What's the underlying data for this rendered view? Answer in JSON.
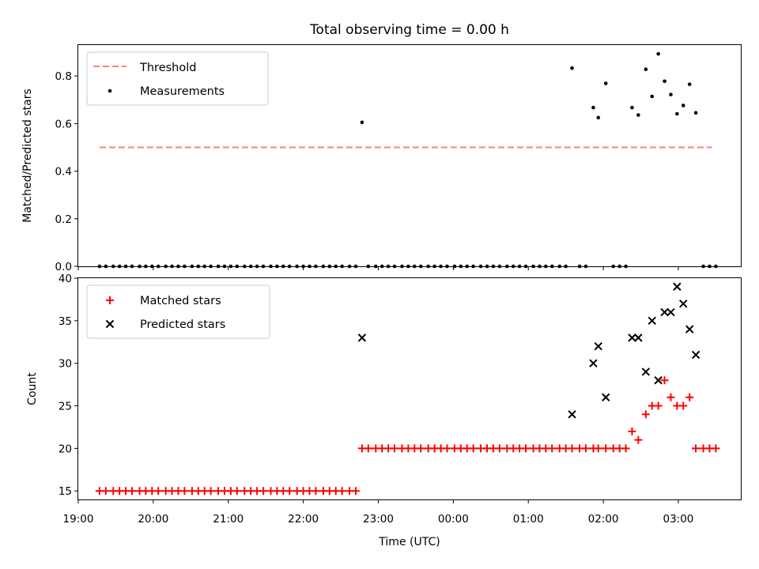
{
  "chart_data": [
    {
      "type": "scatter",
      "title": "Total observing time = 0.00 h",
      "ylabel": "Matched/Predicted stars",
      "xlabel": "",
      "xlim": [
        "19:00",
        "03:50"
      ],
      "ylim": [
        0,
        0.93
      ],
      "yticks": [
        "0.0",
        "0.2",
        "0.4",
        "0.6",
        "0.8"
      ],
      "xticks": [
        "19:00",
        "20:00",
        "21:00",
        "22:00",
        "23:00",
        "00:00",
        "01:00",
        "02:00",
        "03:00"
      ],
      "legend": {
        "position": "upper-left",
        "entries": [
          "Threshold",
          "Measurements"
        ]
      },
      "colors": {
        "threshold": "#ff7f7f",
        "measurements": "#000000"
      },
      "threshold": {
        "name": "Threshold",
        "y": 0.5,
        "x_start": "19:17",
        "x_end": "03:27"
      },
      "series": [
        {
          "name": "Measurements",
          "points": [
            [
              "19:17",
              0
            ],
            [
              "19:22",
              0
            ],
            [
              "19:28",
              0
            ],
            [
              "19:33",
              0
            ],
            [
              "19:38",
              0
            ],
            [
              "19:43",
              0
            ],
            [
              "19:49",
              0
            ],
            [
              "19:54",
              0
            ],
            [
              "19:59",
              0
            ],
            [
              "20:04",
              0
            ],
            [
              "20:10",
              0
            ],
            [
              "20:15",
              0
            ],
            [
              "20:20",
              0
            ],
            [
              "20:25",
              0
            ],
            [
              "20:31",
              0
            ],
            [
              "20:36",
              0
            ],
            [
              "20:41",
              0
            ],
            [
              "20:46",
              0
            ],
            [
              "20:52",
              0
            ],
            [
              "20:57",
              0
            ],
            [
              "21:02",
              0
            ],
            [
              "21:07",
              0
            ],
            [
              "21:13",
              0
            ],
            [
              "21:18",
              0
            ],
            [
              "21:23",
              0
            ],
            [
              "21:28",
              0
            ],
            [
              "21:34",
              0
            ],
            [
              "21:39",
              0
            ],
            [
              "21:44",
              0
            ],
            [
              "21:49",
              0
            ],
            [
              "21:55",
              0
            ],
            [
              "22:00",
              0
            ],
            [
              "22:05",
              0
            ],
            [
              "22:10",
              0
            ],
            [
              "22:16",
              0
            ],
            [
              "22:21",
              0
            ],
            [
              "22:26",
              0
            ],
            [
              "22:31",
              0
            ],
            [
              "22:37",
              0
            ],
            [
              "22:42",
              0
            ],
            [
              "22:47",
              0.605
            ],
            [
              "22:52",
              0
            ],
            [
              "22:58",
              0
            ],
            [
              "23:03",
              0
            ],
            [
              "23:08",
              0
            ],
            [
              "23:13",
              0
            ],
            [
              "23:19",
              0
            ],
            [
              "23:24",
              0
            ],
            [
              "23:29",
              0
            ],
            [
              "23:34",
              0
            ],
            [
              "23:40",
              0
            ],
            [
              "23:45",
              0
            ],
            [
              "23:50",
              0
            ],
            [
              "23:55",
              0
            ],
            [
              "00:01",
              0
            ],
            [
              "00:06",
              0
            ],
            [
              "00:11",
              0
            ],
            [
              "00:16",
              0
            ],
            [
              "00:22",
              0
            ],
            [
              "00:27",
              0
            ],
            [
              "00:32",
              0
            ],
            [
              "00:37",
              0
            ],
            [
              "00:43",
              0
            ],
            [
              "00:48",
              0
            ],
            [
              "00:53",
              0
            ],
            [
              "00:58",
              0
            ],
            [
              "01:04",
              0
            ],
            [
              "01:09",
              0
            ],
            [
              "01:14",
              0
            ],
            [
              "01:19",
              0
            ],
            [
              "01:25",
              0
            ],
            [
              "01:30",
              0
            ],
            [
              "01:35",
              0.833
            ],
            [
              "01:41",
              0
            ],
            [
              "01:46",
              0
            ],
            [
              "01:52",
              0.667
            ],
            [
              "01:56",
              0.625
            ],
            [
              "02:02",
              0.769
            ],
            [
              "02:08",
              0
            ],
            [
              "02:13",
              0
            ],
            [
              "02:18",
              0
            ],
            [
              "02:23",
              0.667
            ],
            [
              "02:28",
              0.636
            ],
            [
              "02:34",
              0.828
            ],
            [
              "02:39",
              0.714
            ],
            [
              "02:44",
              0.893
            ],
            [
              "02:49",
              0.778
            ],
            [
              "02:54",
              0.722
            ],
            [
              "02:59",
              0.641
            ],
            [
              "03:04",
              0.676
            ],
            [
              "03:09",
              0.765
            ],
            [
              "03:14",
              0.645
            ],
            [
              "03:20",
              0
            ],
            [
              "03:25",
              0
            ],
            [
              "03:30",
              0
            ]
          ]
        }
      ]
    },
    {
      "type": "scatter",
      "title": "",
      "ylabel": "Count",
      "xlabel": "Time (UTC)",
      "xlim": [
        "19:00",
        "03:50"
      ],
      "ylim": [
        14,
        40
      ],
      "yticks": [
        "15",
        "20",
        "25",
        "30",
        "35",
        "40"
      ],
      "xticks": [
        "19:00",
        "20:00",
        "21:00",
        "22:00",
        "23:00",
        "00:00",
        "01:00",
        "02:00",
        "03:00"
      ],
      "legend": {
        "position": "upper-left",
        "entries": [
          "Matched stars",
          "Predicted stars"
        ]
      },
      "colors": {
        "matched": "#ff0000",
        "predicted": "#000000"
      },
      "series": [
        {
          "name": "Matched stars",
          "marker": "+",
          "points": [
            [
              "19:17",
              15
            ],
            [
              "19:22",
              15
            ],
            [
              "19:28",
              15
            ],
            [
              "19:33",
              15
            ],
            [
              "19:38",
              15
            ],
            [
              "19:43",
              15
            ],
            [
              "19:49",
              15
            ],
            [
              "19:54",
              15
            ],
            [
              "19:59",
              15
            ],
            [
              "20:04",
              15
            ],
            [
              "20:10",
              15
            ],
            [
              "20:15",
              15
            ],
            [
              "20:20",
              15
            ],
            [
              "20:25",
              15
            ],
            [
              "20:31",
              15
            ],
            [
              "20:36",
              15
            ],
            [
              "20:41",
              15
            ],
            [
              "20:46",
              15
            ],
            [
              "20:52",
              15
            ],
            [
              "20:57",
              15
            ],
            [
              "21:02",
              15
            ],
            [
              "21:07",
              15
            ],
            [
              "21:13",
              15
            ],
            [
              "21:18",
              15
            ],
            [
              "21:23",
              15
            ],
            [
              "21:28",
              15
            ],
            [
              "21:34",
              15
            ],
            [
              "21:39",
              15
            ],
            [
              "21:44",
              15
            ],
            [
              "21:49",
              15
            ],
            [
              "21:55",
              15
            ],
            [
              "22:00",
              15
            ],
            [
              "22:05",
              15
            ],
            [
              "22:10",
              15
            ],
            [
              "22:16",
              15
            ],
            [
              "22:21",
              15
            ],
            [
              "22:26",
              15
            ],
            [
              "22:31",
              15
            ],
            [
              "22:37",
              15
            ],
            [
              "22:42",
              15
            ],
            [
              "22:47",
              20
            ],
            [
              "22:52",
              20
            ],
            [
              "22:58",
              20
            ],
            [
              "23:03",
              20
            ],
            [
              "23:08",
              20
            ],
            [
              "23:13",
              20
            ],
            [
              "23:19",
              20
            ],
            [
              "23:24",
              20
            ],
            [
              "23:29",
              20
            ],
            [
              "23:34",
              20
            ],
            [
              "23:40",
              20
            ],
            [
              "23:45",
              20
            ],
            [
              "23:50",
              20
            ],
            [
              "23:55",
              20
            ],
            [
              "00:01",
              20
            ],
            [
              "00:06",
              20
            ],
            [
              "00:11",
              20
            ],
            [
              "00:16",
              20
            ],
            [
              "00:22",
              20
            ],
            [
              "00:27",
              20
            ],
            [
              "00:32",
              20
            ],
            [
              "00:37",
              20
            ],
            [
              "00:43",
              20
            ],
            [
              "00:48",
              20
            ],
            [
              "00:53",
              20
            ],
            [
              "00:58",
              20
            ],
            [
              "01:04",
              20
            ],
            [
              "01:09",
              20
            ],
            [
              "01:14",
              20
            ],
            [
              "01:19",
              20
            ],
            [
              "01:25",
              20
            ],
            [
              "01:30",
              20
            ],
            [
              "01:35",
              20
            ],
            [
              "01:41",
              20
            ],
            [
              "01:46",
              20
            ],
            [
              "01:52",
              20
            ],
            [
              "01:56",
              20
            ],
            [
              "02:02",
              20
            ],
            [
              "02:08",
              20
            ],
            [
              "02:13",
              20
            ],
            [
              "02:18",
              20
            ],
            [
              "02:23",
              22
            ],
            [
              "02:28",
              21
            ],
            [
              "02:34",
              24
            ],
            [
              "02:39",
              25
            ],
            [
              "02:44",
              25
            ],
            [
              "02:49",
              28
            ],
            [
              "02:54",
              26
            ],
            [
              "02:59",
              25
            ],
            [
              "03:04",
              25
            ],
            [
              "03:09",
              26
            ],
            [
              "03:14",
              20
            ],
            [
              "03:20",
              20
            ],
            [
              "03:25",
              20
            ],
            [
              "03:30",
              20
            ]
          ]
        },
        {
          "name": "Predicted stars",
          "marker": "x",
          "points": [
            [
              "22:47",
              33
            ],
            [
              "01:35",
              24
            ],
            [
              "01:52",
              30
            ],
            [
              "01:56",
              32
            ],
            [
              "02:02",
              26
            ],
            [
              "02:23",
              33
            ],
            [
              "02:28",
              33
            ],
            [
              "02:34",
              29
            ],
            [
              "02:39",
              35
            ],
            [
              "02:44",
              28
            ],
            [
              "02:49",
              36
            ],
            [
              "02:54",
              36
            ],
            [
              "02:59",
              39
            ],
            [
              "03:04",
              37
            ],
            [
              "03:09",
              34
            ],
            [
              "03:14",
              31
            ]
          ]
        }
      ]
    }
  ]
}
